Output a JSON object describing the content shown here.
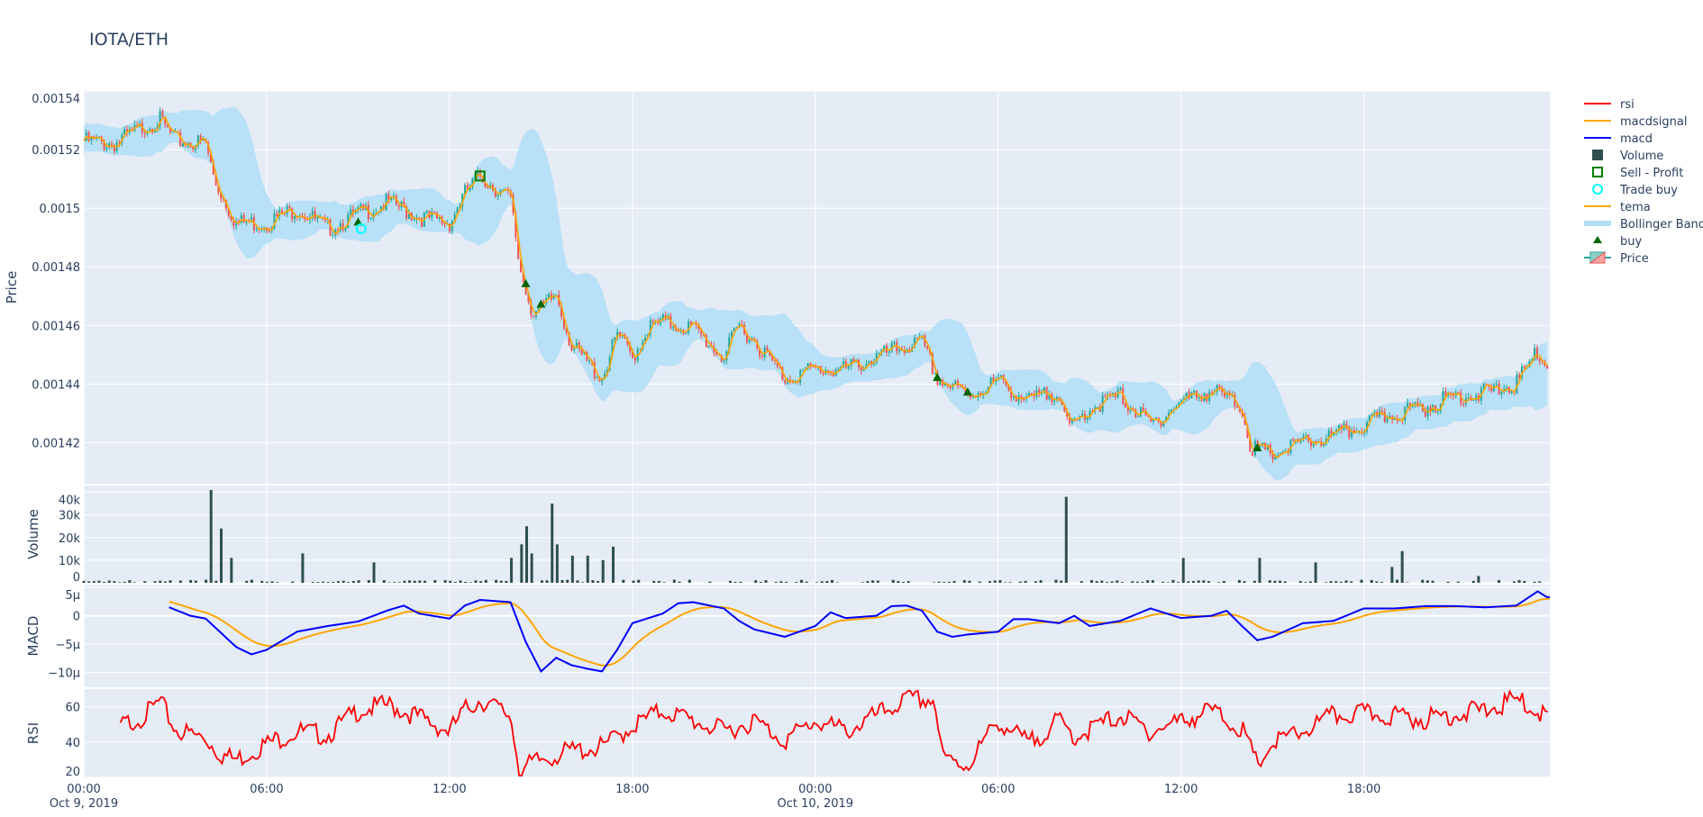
{
  "title": "IOTA/ETH",
  "colors": {
    "plot_bg": "#e5ecf6",
    "grid": "#ffffff",
    "increasing": "#26a69a",
    "decreasing": "#ef5350",
    "volume": "#2f4f4f",
    "tema": "#ffa500",
    "bollinger": "#b3dff6",
    "macd": "#0000ff",
    "macdsignal": "#ffa500",
    "rsi": "#ff0000",
    "buy": "#006400",
    "sell_profit": "#008000",
    "trade_buy": "#00ffff"
  },
  "legend": [
    {
      "name": "rsi",
      "icon": "line",
      "color": "#ff0000"
    },
    {
      "name": "macdsignal",
      "icon": "line",
      "color": "#ffa500"
    },
    {
      "name": "macd",
      "icon": "line",
      "color": "#0000ff"
    },
    {
      "name": "Volume",
      "icon": "square-filled",
      "color": "#2f4f4f"
    },
    {
      "name": "Sell - Profit",
      "icon": "square-open",
      "color": "#008000"
    },
    {
      "name": "Trade buy",
      "icon": "circle-open",
      "color": "#00ffff"
    },
    {
      "name": "tema",
      "icon": "line",
      "color": "#ffa500"
    },
    {
      "name": "Bollinger Band",
      "icon": "band",
      "color": "#b3dff6"
    },
    {
      "name": "buy",
      "icon": "triangle-up",
      "color": "#006400"
    },
    {
      "name": "Price",
      "icon": "candlestick",
      "color": "#26a69a"
    }
  ],
  "chart_data": {
    "type": "candlestick-subplots",
    "x_axis": {
      "range_hours_from_start": [
        0,
        48.1
      ],
      "ticks": [
        {
          "h": 0,
          "label": "00:00",
          "sub": "Oct 9, 2019"
        },
        {
          "h": 6,
          "label": "06:00",
          "sub": ""
        },
        {
          "h": 12,
          "label": "12:00",
          "sub": ""
        },
        {
          "h": 18,
          "label": "18:00",
          "sub": ""
        },
        {
          "h": 24,
          "label": "00:00",
          "sub": "Oct 10, 2019"
        },
        {
          "h": 30,
          "label": "06:00",
          "sub": ""
        },
        {
          "h": 36,
          "label": "12:00",
          "sub": ""
        },
        {
          "h": 42,
          "label": "18:00",
          "sub": ""
        }
      ]
    },
    "price": {
      "ylabel": "Price",
      "ylim": [
        0.001406,
        0.00154
      ],
      "ticks": [
        {
          "v": 0.00142,
          "label": "0.00142"
        },
        {
          "v": 0.00144,
          "label": "0.00144"
        },
        {
          "v": 0.00146,
          "label": "0.00146"
        },
        {
          "v": 0.00148,
          "label": "0.00148"
        },
        {
          "v": 0.0015,
          "label": "0.0015"
        },
        {
          "v": 0.00152,
          "label": "0.00152"
        },
        {
          "v": 0.00154,
          "label": "0.00154"
        }
      ],
      "close_points": [
        [
          0,
          0.001523
        ],
        [
          1,
          0.001522
        ],
        [
          2,
          0.001528
        ],
        [
          2.5,
          0.00153
        ],
        [
          3,
          0.001523
        ],
        [
          4,
          0.001522
        ],
        [
          4.3,
          0.001509
        ],
        [
          5,
          0.001495
        ],
        [
          6,
          0.001495
        ],
        [
          7,
          0.0015
        ],
        [
          8,
          0.001493
        ],
        [
          9,
          0.001498
        ],
        [
          10,
          0.001502
        ],
        [
          11,
          0.001497
        ],
        [
          12,
          0.001495
        ],
        [
          12.5,
          0.001505
        ],
        [
          13,
          0.001511
        ],
        [
          14,
          0.001503
        ],
        [
          14.3,
          0.00148
        ],
        [
          14.7,
          0.001465
        ],
        [
          15,
          0.001465
        ],
        [
          15.5,
          0.001471
        ],
        [
          16,
          0.001453
        ],
        [
          17,
          0.001442
        ],
        [
          17.5,
          0.001457
        ],
        [
          18,
          0.001449
        ],
        [
          18.5,
          0.001459
        ],
        [
          19,
          0.001461
        ],
        [
          20,
          0.001459
        ],
        [
          21,
          0.001449
        ],
        [
          21.5,
          0.00146
        ],
        [
          22,
          0.001455
        ],
        [
          23,
          0.001442
        ],
        [
          24,
          0.001445
        ],
        [
          25,
          0.001445
        ],
        [
          26,
          0.001449
        ],
        [
          27,
          0.001453
        ],
        [
          27.5,
          0.001454
        ],
        [
          28,
          0.001442
        ],
        [
          29,
          0.001436
        ],
        [
          30,
          0.001441
        ],
        [
          31,
          0.001434
        ],
        [
          32,
          0.001438
        ],
        [
          32.3,
          0.001424
        ],
        [
          33,
          0.001432
        ],
        [
          34,
          0.001436
        ],
        [
          35,
          0.001426
        ],
        [
          36,
          0.001434
        ],
        [
          37,
          0.001438
        ],
        [
          38,
          0.001432
        ],
        [
          38.3,
          0.001418
        ],
        [
          39,
          0.001416
        ],
        [
          40,
          0.00142
        ],
        [
          41,
          0.001422
        ],
        [
          42,
          0.001426
        ],
        [
          43,
          0.00143
        ],
        [
          44,
          0.001432
        ],
        [
          45,
          0.001436
        ],
        [
          46,
          0.001437
        ],
        [
          47,
          0.00144
        ],
        [
          47.7,
          0.001451
        ],
        [
          48,
          0.001447
        ]
      ],
      "buy": [
        [
          9,
          0.001495
        ],
        [
          14.5,
          0.001474
        ],
        [
          15,
          0.001467
        ],
        [
          28,
          0.001442
        ],
        [
          29,
          0.001437
        ],
        [
          38.5,
          0.001418
        ]
      ],
      "sell_profit": [
        [
          13,
          0.001511
        ]
      ],
      "trade_buy": [
        [
          9.1,
          0.001493
        ]
      ]
    },
    "volume": {
      "ylabel": "Volume",
      "ylim": [
        0,
        43000
      ],
      "ticks": [
        {
          "v": 0,
          "label": "0"
        },
        {
          "v": 10000,
          "label": "10k"
        },
        {
          "v": 20000,
          "label": "20k"
        },
        {
          "v": 30000,
          "label": "30k"
        },
        {
          "v": 40000,
          "label": "40k"
        }
      ],
      "baseline": 600,
      "spikes": [
        [
          4.2,
          41000
        ],
        [
          4.5,
          24000
        ],
        [
          4.8,
          11000
        ],
        [
          7.1,
          13000
        ],
        [
          9.6,
          9000
        ],
        [
          14.1,
          11000
        ],
        [
          14.3,
          17000
        ],
        [
          14.5,
          25000
        ],
        [
          14.7,
          13000
        ],
        [
          15.4,
          35000
        ],
        [
          15.5,
          17000
        ],
        [
          16.0,
          12000
        ],
        [
          16.5,
          12000
        ],
        [
          17.3,
          16000
        ],
        [
          17.1,
          10000
        ],
        [
          32.3,
          38000
        ],
        [
          36.1,
          11000
        ],
        [
          38.5,
          7000
        ],
        [
          38.6,
          11000
        ],
        [
          40.5,
          9000
        ],
        [
          42.9,
          7000
        ],
        [
          43.2,
          14000
        ],
        [
          45.8,
          3000
        ]
      ]
    },
    "macd": {
      "ylabel": "MACD",
      "ylim": [
        -1.26e-05,
        5.5e-06
      ],
      "ticks": [
        {
          "v": 5e-06,
          "label": "5μ"
        },
        {
          "v": 0,
          "label": "0"
        },
        {
          "v": -5e-06,
          "label": "−5μ"
        },
        {
          "v": -1e-05,
          "label": "−10μ"
        }
      ],
      "macd_points": [
        [
          2.8,
          1.5
        ],
        [
          3.5,
          0
        ],
        [
          4,
          -0.5
        ],
        [
          5,
          -5.5
        ],
        [
          5.5,
          -6.8
        ],
        [
          6,
          -6
        ],
        [
          7,
          -2.8
        ],
        [
          8,
          -1.8
        ],
        [
          9,
          -1
        ],
        [
          10,
          1
        ],
        [
          10.5,
          1.8
        ],
        [
          11,
          0.4
        ],
        [
          12,
          -0.5
        ],
        [
          12.5,
          1.8
        ],
        [
          13,
          2.8
        ],
        [
          14,
          2.4
        ],
        [
          14.5,
          -4.6
        ],
        [
          15,
          -9.8
        ],
        [
          15.5,
          -7.4
        ],
        [
          16,
          -8.7
        ],
        [
          16.5,
          -9.3
        ],
        [
          17,
          -9.8
        ],
        [
          17.5,
          -6
        ],
        [
          18,
          -1.3
        ],
        [
          19,
          0.4
        ],
        [
          19.5,
          2.2
        ],
        [
          20,
          2.4
        ],
        [
          21,
          1.3
        ],
        [
          21.5,
          -0.9
        ],
        [
          22,
          -2.4
        ],
        [
          23,
          -3.7
        ],
        [
          24,
          -1.8
        ],
        [
          24.5,
          0.6
        ],
        [
          25,
          -0.4
        ],
        [
          26,
          0
        ],
        [
          26.5,
          1.7
        ],
        [
          27,
          1.8
        ],
        [
          27.5,
          0.9
        ],
        [
          28,
          -2.8
        ],
        [
          28.5,
          -3.7
        ],
        [
          29,
          -3.3
        ],
        [
          30,
          -2.8
        ],
        [
          30.5,
          -0.6
        ],
        [
          31,
          -0.6
        ],
        [
          32,
          -1.3
        ],
        [
          32.5,
          0
        ],
        [
          33,
          -1.8
        ],
        [
          34,
          -0.9
        ],
        [
          35,
          1.3
        ],
        [
          36,
          -0.4
        ],
        [
          37,
          0
        ],
        [
          37.5,
          0.9
        ],
        [
          38,
          -1.8
        ],
        [
          38.5,
          -4.3
        ],
        [
          39,
          -3.7
        ],
        [
          40,
          -1.3
        ],
        [
          41,
          -0.9
        ],
        [
          42,
          1.3
        ],
        [
          43,
          1.3
        ],
        [
          44,
          1.7
        ],
        [
          45,
          1.7
        ],
        [
          46,
          1.5
        ],
        [
          47,
          1.8
        ],
        [
          47.7,
          4.3
        ],
        [
          48,
          3.3
        ]
      ],
      "unit": "μ"
    },
    "rsi": {
      "ylabel": "RSI",
      "ylim": [
        20,
        70
      ],
      "ticks": [
        {
          "v": 20,
          "label": "20"
        },
        {
          "v": 40,
          "label": "40"
        },
        {
          "v": 60,
          "label": "60"
        }
      ],
      "rsi_points": [
        [
          1.2,
          49
        ],
        [
          2,
          55
        ],
        [
          2.5,
          63
        ],
        [
          3,
          47
        ],
        [
          4,
          42
        ],
        [
          4.5,
          33
        ],
        [
          5,
          30
        ],
        [
          6,
          39
        ],
        [
          7,
          46
        ],
        [
          8,
          44
        ],
        [
          9,
          58
        ],
        [
          10,
          61
        ],
        [
          11,
          54
        ],
        [
          12,
          46
        ],
        [
          12.5,
          58
        ],
        [
          13,
          64
        ],
        [
          14,
          55
        ],
        [
          14.3,
          24
        ],
        [
          15,
          30
        ],
        [
          16,
          35
        ],
        [
          17,
          37
        ],
        [
          18,
          49
        ],
        [
          19,
          58
        ],
        [
          20,
          52
        ],
        [
          21,
          46
        ],
        [
          22,
          52
        ],
        [
          23,
          41
        ],
        [
          24,
          52
        ],
        [
          25,
          46
        ],
        [
          26,
          55
        ],
        [
          27,
          64
        ],
        [
          27.9,
          64
        ],
        [
          28.2,
          30
        ],
        [
          29,
          27
        ],
        [
          30,
          52
        ],
        [
          31,
          39
        ],
        [
          32,
          52
        ],
        [
          32.5,
          43
        ],
        [
          33,
          47
        ],
        [
          34,
          55
        ],
        [
          35,
          46
        ],
        [
          36,
          52
        ],
        [
          37,
          58
        ],
        [
          38,
          47
        ],
        [
          38.5,
          27
        ],
        [
          39,
          39
        ],
        [
          40,
          46
        ],
        [
          41,
          55
        ],
        [
          42,
          56
        ],
        [
          43,
          55
        ],
        [
          44,
          53
        ],
        [
          45,
          56
        ],
        [
          46,
          58
        ],
        [
          47,
          64
        ],
        [
          48,
          55
        ]
      ]
    }
  }
}
